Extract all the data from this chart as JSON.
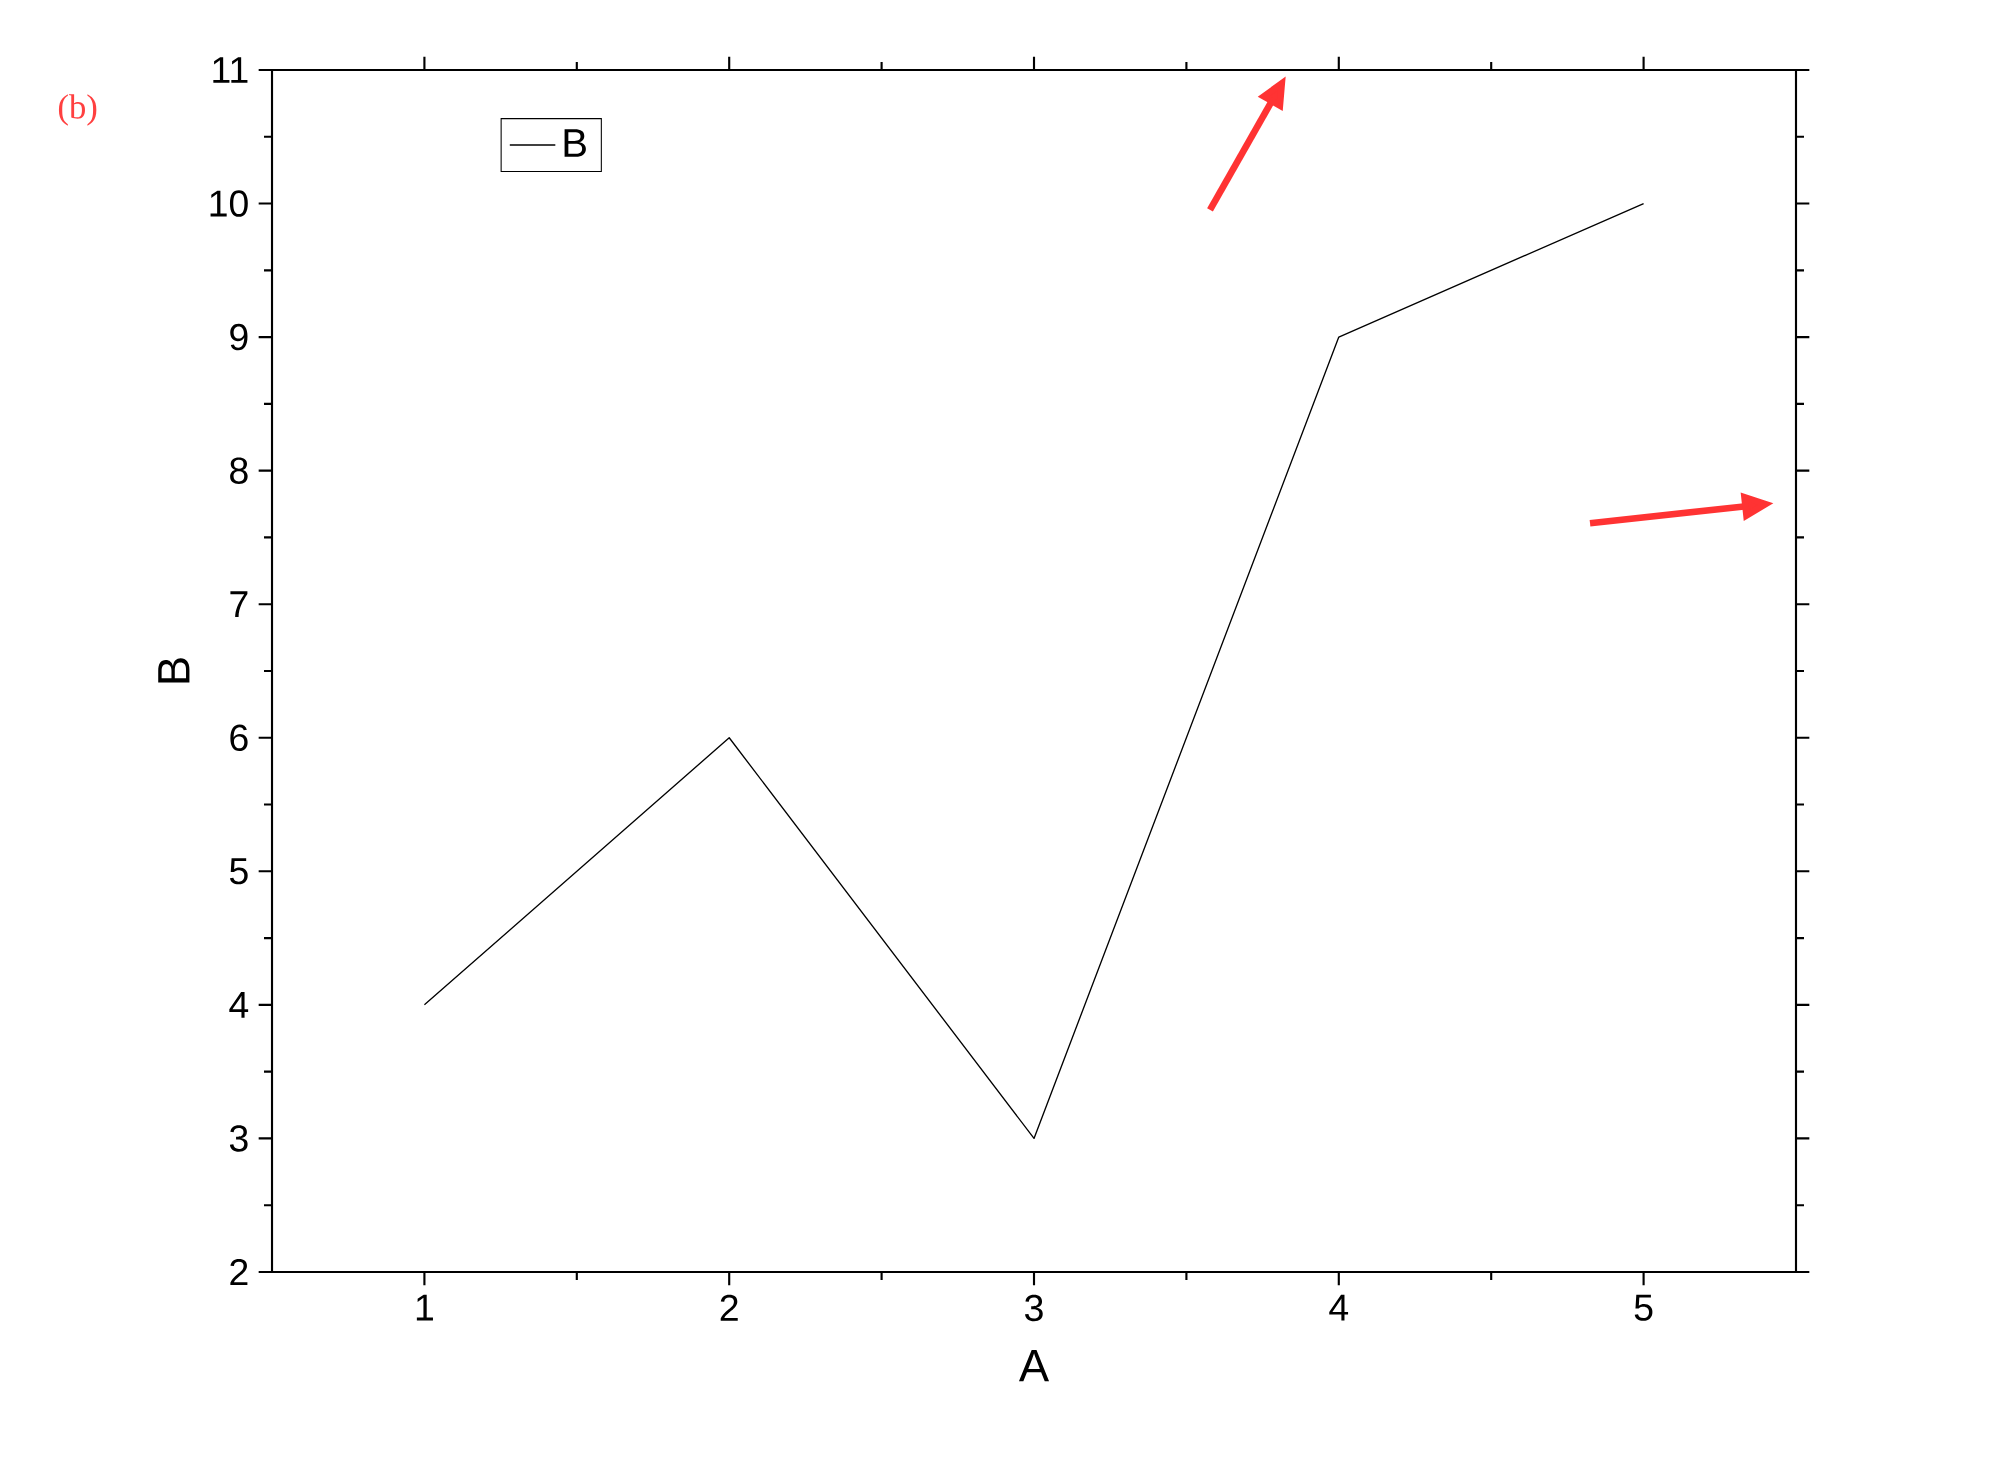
{
  "chart_data": {
    "type": "line",
    "xlabel": "A",
    "ylabel": "B",
    "annotations": [
      "(b)"
    ],
    "x": [
      1,
      2,
      3,
      4,
      5
    ],
    "series": [
      {
        "name": "B",
        "color": "#000000",
        "values": [
          4,
          6,
          3,
          9,
          10
        ]
      }
    ],
    "xlim": [
      0.5,
      5.5
    ],
    "xticks": [
      1,
      2,
      3,
      4,
      5
    ],
    "ylim": [
      2,
      11
    ],
    "yticks": [
      2,
      3,
      4,
      5,
      6,
      7,
      8,
      9,
      10,
      11
    ],
    "legend": "top left",
    "grid": false,
    "marker": "none",
    "line_style": "solid"
  }
}
